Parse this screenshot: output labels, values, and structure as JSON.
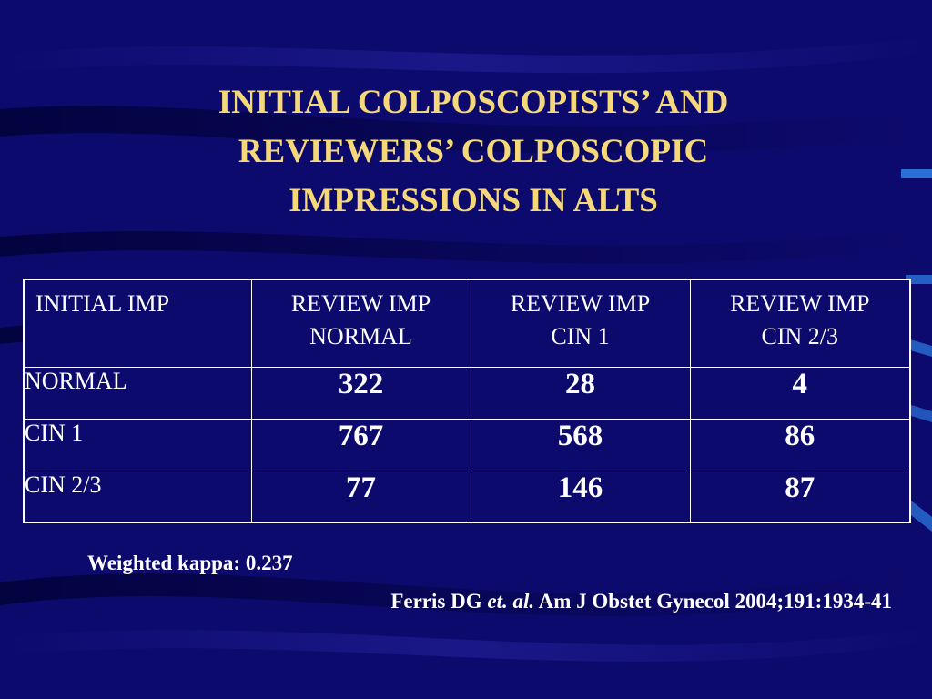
{
  "title_lines": [
    "INITIAL COLPOSCOPISTS’ AND",
    "REVIEWERS’ COLPOSCOPIC",
    "IMPRESSIONS IN ALTS"
  ],
  "table": {
    "headers": [
      [
        "INITIAL IMP"
      ],
      [
        "REVIEW IMP",
        "NORMAL"
      ],
      [
        "REVIEW IMP",
        "CIN 1"
      ],
      [
        "REVIEW IMP",
        "CIN 2/3"
      ]
    ],
    "rows": [
      {
        "label": "NORMAL",
        "values": [
          "322",
          "28",
          "4"
        ]
      },
      {
        "label": "CIN 1",
        "values": [
          "767",
          "568",
          "86"
        ]
      },
      {
        "label": "CIN 2/3",
        "values": [
          "77",
          "146",
          "87"
        ]
      }
    ]
  },
  "kappa": "Weighted kappa: 0.237",
  "citation": {
    "authors": "Ferris DG",
    "etal": "et. al.",
    "journal": "Am J Obstet Gynecol 2004;191:1934-41"
  },
  "colors": {
    "background": "#0d0a6e",
    "title": "#f5d87a",
    "text": "#ffffff",
    "accent": "#2a6fd6"
  }
}
